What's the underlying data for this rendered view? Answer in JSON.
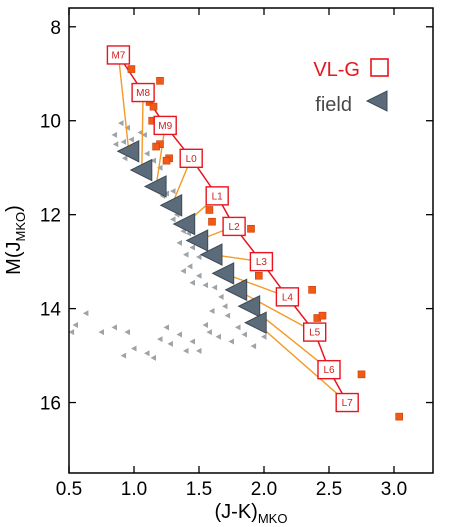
{
  "chart_data": {
    "type": "scatter",
    "xlabel": {
      "main": "(J-K)",
      "sub": "MKO"
    },
    "ylabel": {
      "main": "M(J",
      "sub": "MKO",
      "close": ")"
    },
    "xlim": [
      0.5,
      3.3
    ],
    "ylim": [
      17.5,
      7.6
    ],
    "y_inverted": true,
    "x_ticks": [
      "0.5",
      "1.0",
      "1.5",
      "2.0",
      "2.5",
      "3.0"
    ],
    "x_tick_values": [
      0.5,
      1.0,
      1.5,
      2.0,
      2.5,
      3.0
    ],
    "y_ticks": [
      "8",
      "10",
      "12",
      "14",
      "16"
    ],
    "y_tick_values": [
      8,
      10,
      12,
      14,
      16
    ],
    "grid": false,
    "legend_position": "top-right",
    "legend": [
      {
        "label": "VL-G",
        "marker": "open-square",
        "color": "#e8141e"
      },
      {
        "label": "field",
        "marker": "left-triangle",
        "color": "#5b6b79"
      }
    ],
    "colors": {
      "vlg": "#e8141e",
      "connector": "#f39a28",
      "field_sequence": "#5b6b79",
      "field_objects": "#9ea3a8",
      "young_objects": "#f05a14"
    },
    "vlg_sequence": [
      {
        "label": "M7",
        "x": 0.88,
        "y": 8.6
      },
      {
        "label": "M8",
        "x": 1.07,
        "y": 9.4
      },
      {
        "label": "M9",
        "x": 1.24,
        "y": 10.1
      },
      {
        "label": "L0",
        "x": 1.44,
        "y": 10.8
      },
      {
        "label": "L1",
        "x": 1.64,
        "y": 11.6
      },
      {
        "label": "L2",
        "x": 1.77,
        "y": 12.25
      },
      {
        "label": "L3",
        "x": 1.98,
        "y": 13.0
      },
      {
        "label": "L4",
        "x": 2.18,
        "y": 13.75
      },
      {
        "label": "L5",
        "x": 2.39,
        "y": 14.5
      },
      {
        "label": "L6",
        "x": 2.5,
        "y": 15.3
      },
      {
        "label": "L7",
        "x": 2.64,
        "y": 16.0
      }
    ],
    "field_sequence": [
      {
        "x": 0.96,
        "y": 10.65
      },
      {
        "x": 1.06,
        "y": 11.05
      },
      {
        "x": 1.17,
        "y": 11.4
      },
      {
        "x": 1.29,
        "y": 11.8
      },
      {
        "x": 1.39,
        "y": 12.2
      },
      {
        "x": 1.49,
        "y": 12.55
      },
      {
        "x": 1.6,
        "y": 12.85
      },
      {
        "x": 1.69,
        "y": 13.25
      },
      {
        "x": 1.79,
        "y": 13.6
      },
      {
        "x": 1.89,
        "y": 13.95
      },
      {
        "x": 1.94,
        "y": 14.3
      }
    ],
    "young_objects": [
      {
        "x": 0.98,
        "y": 8.9
      },
      {
        "x": 1.2,
        "y": 9.15
      },
      {
        "x": 1.12,
        "y": 9.6
      },
      {
        "x": 1.15,
        "y": 9.7
      },
      {
        "x": 1.14,
        "y": 10.0
      },
      {
        "x": 1.2,
        "y": 10.5
      },
      {
        "x": 1.17,
        "y": 10.55
      },
      {
        "x": 1.27,
        "y": 10.8
      },
      {
        "x": 1.25,
        "y": 10.85
      },
      {
        "x": 1.58,
        "y": 11.9
      },
      {
        "x": 1.6,
        "y": 12.15
      },
      {
        "x": 1.9,
        "y": 12.3
      },
      {
        "x": 1.96,
        "y": 13.3
      },
      {
        "x": 2.37,
        "y": 13.6
      },
      {
        "x": 2.41,
        "y": 14.2
      },
      {
        "x": 2.45,
        "y": 14.15
      },
      {
        "x": 2.75,
        "y": 15.4
      },
      {
        "x": 3.04,
        "y": 16.3
      }
    ],
    "field_objects": [
      {
        "x": 0.9,
        "y": 10.05
      },
      {
        "x": 0.95,
        "y": 10.15
      },
      {
        "x": 0.85,
        "y": 10.3
      },
      {
        "x": 0.92,
        "y": 10.45
      },
      {
        "x": 0.86,
        "y": 10.5
      },
      {
        "x": 1.0,
        "y": 10.55
      },
      {
        "x": 1.05,
        "y": 10.25
      },
      {
        "x": 1.08,
        "y": 10.3
      },
      {
        "x": 0.98,
        "y": 10.4
      },
      {
        "x": 1.1,
        "y": 10.7
      },
      {
        "x": 1.15,
        "y": 10.85
      },
      {
        "x": 1.2,
        "y": 11.0
      },
      {
        "x": 0.93,
        "y": 10.8
      },
      {
        "x": 1.12,
        "y": 11.1
      },
      {
        "x": 1.18,
        "y": 11.3
      },
      {
        "x": 1.25,
        "y": 11.55
      },
      {
        "x": 1.22,
        "y": 11.6
      },
      {
        "x": 1.3,
        "y": 11.5
      },
      {
        "x": 1.27,
        "y": 11.85
      },
      {
        "x": 1.33,
        "y": 12.0
      },
      {
        "x": 1.3,
        "y": 12.1
      },
      {
        "x": 1.38,
        "y": 12.35
      },
      {
        "x": 1.42,
        "y": 12.4
      },
      {
        "x": 1.35,
        "y": 12.6
      },
      {
        "x": 1.45,
        "y": 12.7
      },
      {
        "x": 1.4,
        "y": 12.85
      },
      {
        "x": 1.5,
        "y": 12.9
      },
      {
        "x": 1.43,
        "y": 13.1
      },
      {
        "x": 1.38,
        "y": 13.2
      },
      {
        "x": 1.5,
        "y": 13.3
      },
      {
        "x": 1.55,
        "y": 13.5
      },
      {
        "x": 1.45,
        "y": 13.45
      },
      {
        "x": 1.62,
        "y": 13.55
      },
      {
        "x": 1.67,
        "y": 13.75
      },
      {
        "x": 1.7,
        "y": 13.95
      },
      {
        "x": 1.6,
        "y": 14.05
      },
      {
        "x": 1.72,
        "y": 14.15
      },
      {
        "x": 1.55,
        "y": 14.35
      },
      {
        "x": 1.58,
        "y": 14.5
      },
      {
        "x": 1.65,
        "y": 14.6
      },
      {
        "x": 1.8,
        "y": 14.4
      },
      {
        "x": 1.85,
        "y": 14.55
      },
      {
        "x": 1.75,
        "y": 14.7
      },
      {
        "x": 1.92,
        "y": 14.8
      },
      {
        "x": 2.0,
        "y": 14.6
      },
      {
        "x": 1.45,
        "y": 14.7
      },
      {
        "x": 1.5,
        "y": 14.9
      },
      {
        "x": 1.35,
        "y": 14.55
      },
      {
        "x": 1.25,
        "y": 14.4
      },
      {
        "x": 1.2,
        "y": 14.65
      },
      {
        "x": 1.28,
        "y": 14.75
      },
      {
        "x": 1.4,
        "y": 14.9
      },
      {
        "x": 1.1,
        "y": 14.95
      },
      {
        "x": 1.0,
        "y": 14.85
      },
      {
        "x": 0.95,
        "y": 14.5
      },
      {
        "x": 0.85,
        "y": 14.4
      },
      {
        "x": 0.75,
        "y": 14.5
      },
      {
        "x": 0.63,
        "y": 14.1
      },
      {
        "x": 0.55,
        "y": 14.35
      },
      {
        "x": 0.52,
        "y": 14.5
      },
      {
        "x": 0.92,
        "y": 15.0
      },
      {
        "x": 1.15,
        "y": 15.05
      }
    ]
  }
}
